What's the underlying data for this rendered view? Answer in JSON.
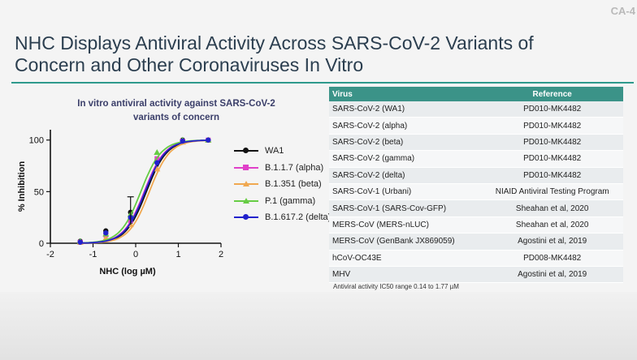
{
  "slide_id": "CA-4",
  "title_line1": "NHC Displays Antiviral Activity Across SARS-CoV-2 Variants of",
  "title_line2": "Concern and Other Coronaviruses In Vitro",
  "chart_title_line1": "In vitro antiviral activity against SARS-CoV-2",
  "chart_title_line2": "variants of concern",
  "colors": {
    "teal": "#3b9388",
    "title": "#2b3e4f"
  },
  "chart_data": {
    "type": "line",
    "title": "In vitro antiviral activity against SARS-CoV-2 variants of concern",
    "xlabel": "NHC (log µM)",
    "ylabel": "% Inhibition",
    "xlim": [
      -2,
      2
    ],
    "ylim": [
      0,
      110
    ],
    "x_ticks": [
      "-2",
      "-1",
      "0",
      "1",
      "2"
    ],
    "y_ticks": [
      "0",
      "50",
      "100"
    ],
    "legend_position": "right",
    "x": [
      -1.3,
      -0.7,
      -0.12,
      0.5,
      1.1,
      1.7
    ],
    "series": [
      {
        "name": "WA1",
        "color": "#111111",
        "marker": "circle",
        "values": [
          2,
          12,
          30,
          80,
          100,
          100
        ],
        "ec50_log": 0.25
      },
      {
        "name": "B.1.1.7 (alpha)",
        "color": "#e040c8",
        "marker": "square",
        "values": [
          1,
          8,
          22,
          82,
          99,
          100
        ],
        "ec50_log": 0.2
      },
      {
        "name": "B.1.351 (beta)",
        "color": "#f0a850",
        "marker": "triangle",
        "values": [
          1,
          5,
          18,
          72,
          98,
          100
        ],
        "ec50_log": 0.32
      },
      {
        "name": "P.1 (gamma)",
        "color": "#66cc44",
        "marker": "triangle",
        "values": [
          2,
          9,
          28,
          88,
          100,
          100
        ],
        "ec50_log": 0.12
      },
      {
        "name": "B.1.617.2 (delta)",
        "color": "#2222cc",
        "marker": "circle",
        "values": [
          1,
          10,
          25,
          78,
          99,
          100
        ],
        "ec50_log": 0.22
      }
    ]
  },
  "table": {
    "headers": [
      "Virus",
      "Reference"
    ],
    "rows": [
      [
        "SARS-CoV-2 (WA1)",
        "PD010-MK4482"
      ],
      [
        "SARS-CoV-2 (alpha)",
        "PD010-MK4482"
      ],
      [
        "SARS-CoV-2 (beta)",
        "PD010-MK4482"
      ],
      [
        "SARS-CoV-2 (gamma)",
        "PD010-MK4482"
      ],
      [
        "SARS-CoV-2 (delta)",
        "PD010-MK4482"
      ],
      [
        "SARS-CoV-1 (Urbani)",
        "NIAID Antiviral Testing Program"
      ],
      [
        "SARS-CoV-1 (SARS-Cov-GFP)",
        "Sheahan et al, 2020"
      ],
      [
        "MERS-CoV (MERS-nLUC)",
        "Sheahan et al, 2020"
      ],
      [
        "MERS-CoV (GenBank JX869059)",
        "Agostini et al, 2019"
      ],
      [
        "hCoV-OC43E",
        "PD008-MK4482"
      ],
      [
        "MHV",
        "Agostini et al, 2019"
      ]
    ]
  },
  "footnote": "Antiviral activity IC50 range 0.14 to 1.77 µM"
}
